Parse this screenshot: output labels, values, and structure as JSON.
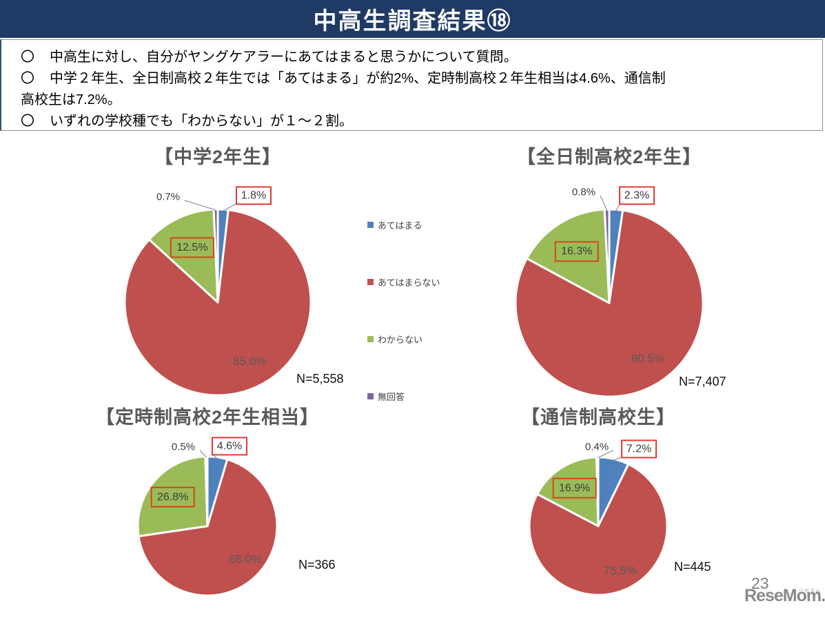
{
  "header": {
    "title": "中高生調査結果⑱",
    "banner_color": "#1f3a64"
  },
  "bullets": [
    {
      "marker": "〇",
      "lines": [
        "中高生に対し、自分がヤングケアラーにあてはまると思うかについて質問。"
      ]
    },
    {
      "marker": "〇",
      "lines": [
        "中学２年生、全日制高校２年生では「あてはまる」が約2%、定時制高校２年生相当は4.6%、通信制",
        "高校生は7.2%。"
      ]
    },
    {
      "marker": "〇",
      "lines": [
        "いずれの学校種でも「わからない」が１～２割。"
      ]
    }
  ],
  "legend": [
    {
      "label": "あてはまる",
      "color": "#4F81BD"
    },
    {
      "label": "あてはまらない",
      "color": "#C0504D"
    },
    {
      "label": "わからない",
      "color": "#9BBB59"
    },
    {
      "label": "無回答",
      "color": "#8064A2"
    }
  ],
  "annotation_style": {
    "highlight_box_applies": "#e03a34",
    "highlight_box_dontknow": "#cf4a14",
    "leader_line": "#808080",
    "inner_label_color": "#595959",
    "outer_label_color": "#3a3a3a"
  },
  "chart_data": [
    {
      "type": "pie",
      "title": "【中学2年生】",
      "n_label": "N=5,558",
      "categories": [
        "あてはまる",
        "あてはまらない",
        "わからない",
        "無回答"
      ],
      "values": [
        1.8,
        85.0,
        12.5,
        0.7
      ],
      "labels": [
        "1.8%",
        "85.0%",
        "12.5%",
        "0.7%"
      ],
      "colors": [
        "#4F81BD",
        "#C0504D",
        "#9BBB59",
        "#8064A2"
      ],
      "start_angle_deg": 0,
      "direction": "clockwise",
      "boxed_labels": [
        "あてはまる",
        "わからない"
      ],
      "legend_position": "right"
    },
    {
      "type": "pie",
      "title": "【全日制高校2年生】",
      "n_label": "N=7,407",
      "categories": [
        "あてはまる",
        "あてはまらない",
        "わからない",
        "無回答"
      ],
      "values": [
        2.3,
        80.5,
        16.3,
        0.8
      ],
      "labels": [
        "2.3%",
        "80.5%",
        "16.3%",
        "0.8%"
      ],
      "colors": [
        "#4F81BD",
        "#C0504D",
        "#9BBB59",
        "#8064A2"
      ],
      "start_angle_deg": 0,
      "direction": "clockwise",
      "boxed_labels": [
        "あてはまる",
        "わからない"
      ],
      "legend_position": "shared"
    },
    {
      "type": "pie",
      "title": "【定時制高校2年生相当】",
      "n_label": "N=366",
      "categories": [
        "あてはまる",
        "あてはまらない",
        "わからない",
        "無回答"
      ],
      "values": [
        4.6,
        68.0,
        26.8,
        0.5
      ],
      "labels": [
        "4.6%",
        "68.0%",
        "26.8%",
        "0.5%"
      ],
      "colors": [
        "#4F81BD",
        "#C0504D",
        "#9BBB59",
        "#8064A2"
      ],
      "start_angle_deg": 0,
      "direction": "clockwise",
      "boxed_labels": [
        "あてはまる",
        "わからない"
      ],
      "legend_position": "shared"
    },
    {
      "type": "pie",
      "title": "【通信制高校生】",
      "n_label": "N=445",
      "categories": [
        "あてはまる",
        "あてはまらない",
        "わからない",
        "無回答"
      ],
      "values": [
        7.2,
        75.5,
        16.9,
        0.4
      ],
      "labels": [
        "7.2%",
        "75.5%",
        "16.9%",
        "0.4%"
      ],
      "colors": [
        "#4F81BD",
        "#C0504D",
        "#9BBB59",
        "#8064A2"
      ],
      "start_angle_deg": 0,
      "direction": "clockwise",
      "boxed_labels": [
        "あてはまる",
        "わからない"
      ],
      "legend_position": "shared"
    }
  ],
  "footer": {
    "page_number": "23",
    "logo_text": "ReseMom.",
    "logo_ruby": "リセマム"
  }
}
